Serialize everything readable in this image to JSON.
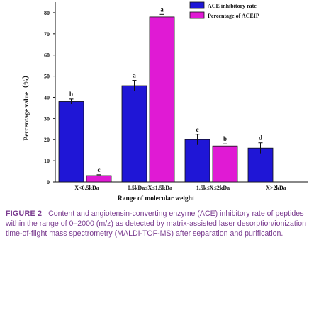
{
  "chart_data": {
    "type": "bar",
    "categories": [
      "X<0.5kDa",
      "0.5kDa≤X≤1.5kDa",
      "1.5k≤X≤2kDa",
      "X>2kDa"
    ],
    "series": [
      {
        "name": "ACE inhibitory rate",
        "color": "#1f16d6",
        "values": [
          38,
          45.5,
          20,
          16
        ],
        "errors": [
          1.2,
          2.5,
          2.5,
          2.5
        ],
        "letters": [
          "b",
          "a",
          "c",
          "d"
        ]
      },
      {
        "name": "Percentage of ACEIP",
        "color": "#e01ad4",
        "values": [
          3,
          78,
          17,
          null
        ],
        "errors": [
          0.4,
          1.2,
          1.0,
          null
        ],
        "letters": [
          "c",
          "a",
          "b",
          ""
        ]
      }
    ],
    "xlabel": "Range of molecular weight",
    "ylabel": "Percentage value（%）",
    "ylim": [
      0,
      85
    ],
    "yticks": [
      0,
      10,
      20,
      30,
      40,
      50,
      60,
      70,
      80
    ],
    "legend_position": "top-right",
    "grid": false
  },
  "caption": {
    "label": "FIGURE 2",
    "text": "Content and angiotensin-converting enzyme (ACE) inhibitory rate of peptides within the range of 0–2000 (m/z) as detected by matrix-assisted laser desorption/ionization time-of-flight mass spectrometry (MALDI-TOF-MS) after separation and purification."
  }
}
